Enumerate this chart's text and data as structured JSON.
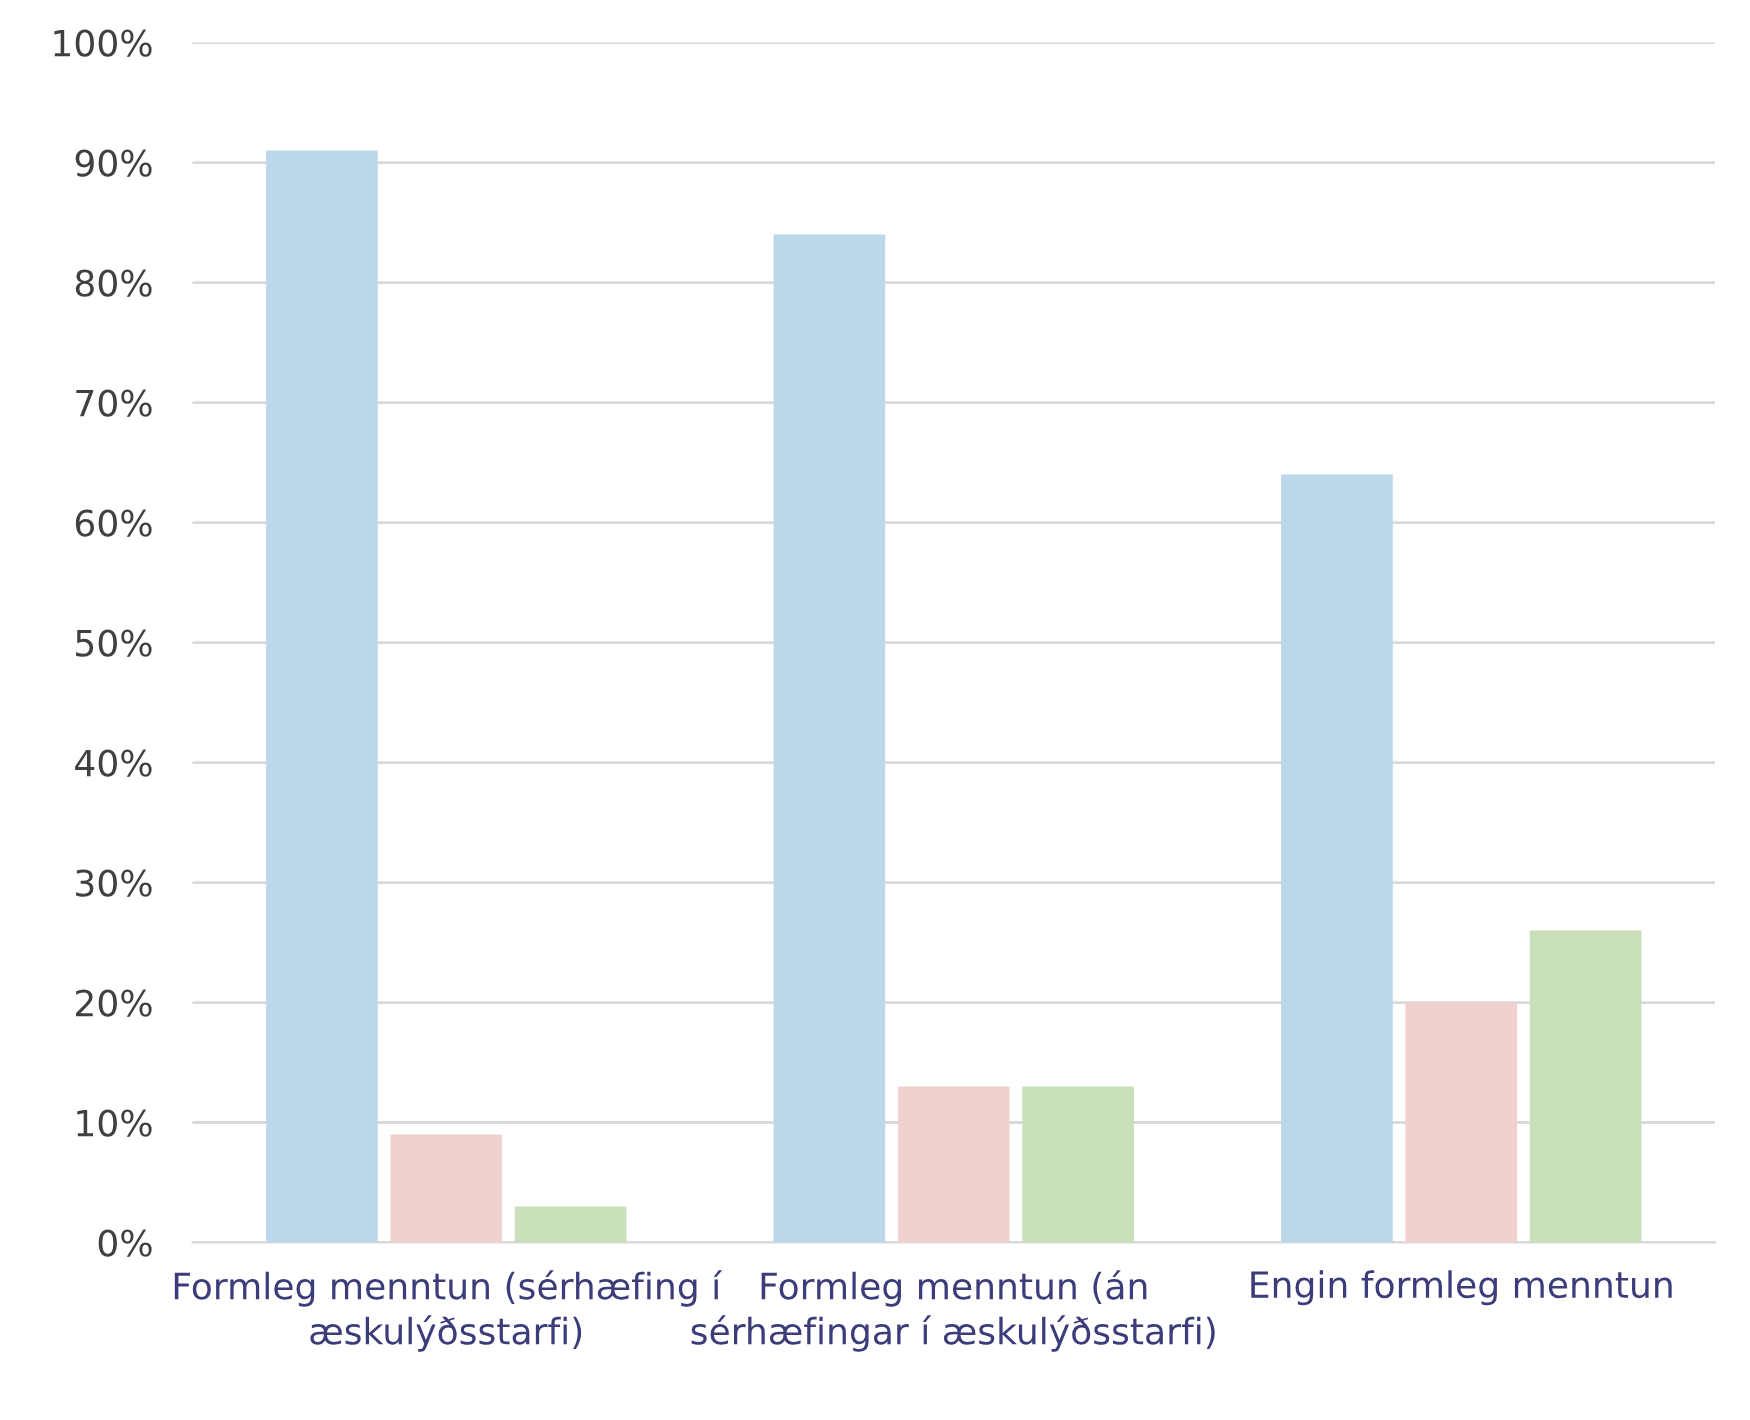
{
  "chart_data": {
    "type": "bar",
    "categories": [
      "Formleg menntun (sérhæfing í æskulýðsstarfi)",
      "Formleg menntun (án sérhæfingar í æskulýðsstarfi)",
      "Engin formleg menntun"
    ],
    "series": [
      {
        "color": "#bdd7ea",
        "values": [
          91,
          84,
          64
        ]
      },
      {
        "color": "#f0d1cf",
        "values": [
          9,
          13,
          20
        ]
      },
      {
        "color": "#c9dfb9",
        "values": [
          3,
          13,
          26
        ]
      }
    ],
    "ylim": [
      0,
      100
    ],
    "yticks": [
      {
        "value": 0,
        "label": "0%"
      },
      {
        "value": 10,
        "label": "10%"
      },
      {
        "value": 20,
        "label": "20%"
      },
      {
        "value": 30,
        "label": "30%"
      },
      {
        "value": 40,
        "label": "40%"
      },
      {
        "value": 50,
        "label": "50%"
      },
      {
        "value": 60,
        "label": "60%"
      },
      {
        "value": 70,
        "label": "70%"
      },
      {
        "value": 80,
        "label": "80%"
      },
      {
        "value": 90,
        "label": "90%"
      },
      {
        "value": 100,
        "label": "100%"
      }
    ],
    "grid": "y",
    "legend": false
  }
}
